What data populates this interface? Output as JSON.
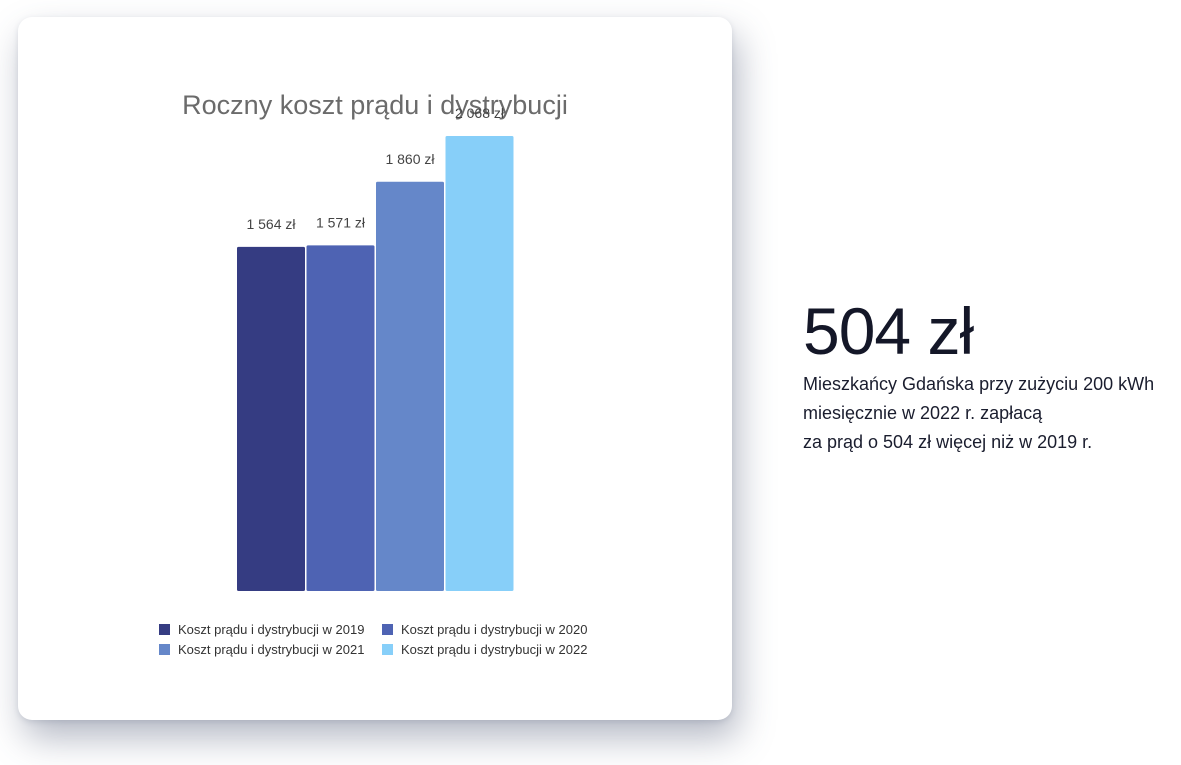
{
  "chart_data": {
    "type": "bar",
    "title": "Roczny koszt prądu i dystrybucji",
    "categories": [
      "2019",
      "2020",
      "2021",
      "2022"
    ],
    "values": [
      1564,
      1571,
      1860,
      2068
    ],
    "value_labels": [
      "1 564 zł",
      "1 571 zł",
      "1 860 zł",
      "2 068 zł"
    ],
    "ylim": [
      0,
      2500
    ],
    "grid": false,
    "legend_position": "bottom",
    "series": [
      {
        "name": "Koszt prądu i dystrybucji w 2019",
        "value": 1564,
        "color": "#353c82"
      },
      {
        "name": "Koszt prądu i dystrybucji w 2020",
        "value": 1571,
        "color": "#4e63b3"
      },
      {
        "name": "Koszt prądu i dystrybucji w 2021",
        "value": 1860,
        "color": "#6587c9"
      },
      {
        "name": "Koszt prądu i dystrybucji w 2022",
        "value": 2068,
        "color": "#87cff9"
      }
    ]
  },
  "highlight": {
    "value": "504 zł",
    "lines": [
      "Mieszkańcy Gdańska przy zużyciu 200 kWh",
      "miesięcznie w 2022 r. zapłacą",
      "za prąd o 504 zł więcej niż w 2019 r."
    ]
  }
}
